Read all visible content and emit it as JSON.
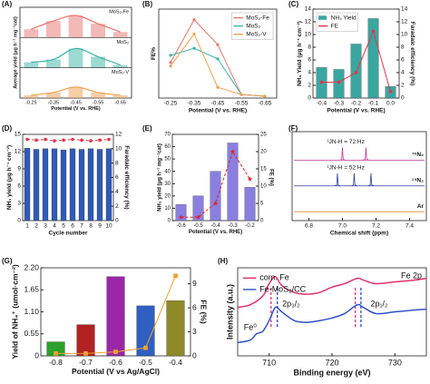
{
  "chart_data": [
    {
      "type": "bar-multi",
      "panel_label": "(A)",
      "xlabel": "Potential (V vs. RHE)",
      "ylabel": "Average yield (μg h⁻¹ mg⁻¹cat)",
      "categories": [
        "-0.25",
        "-0.35",
        "-0.45",
        "-0.55",
        "-0.65"
      ],
      "ylim": [
        0,
        10
      ],
      "series": [
        {
          "name": "MoS₂-Fe",
          "color": "#e8746e",
          "values": [
            3,
            6,
            8,
            5,
            2
          ]
        },
        {
          "name": "MoS₂",
          "color": "#3bb3a8",
          "values": [
            2,
            3,
            7,
            4,
            1
          ]
        },
        {
          "name": "MoS₂-V",
          "color": "#f0a050",
          "values": [
            1,
            2,
            4,
            2,
            1
          ]
        }
      ]
    },
    {
      "type": "line",
      "panel_label": "(B)",
      "xlabel": "Potential (V vs. RHE)",
      "ylabel": "FE%",
      "categories": [
        "-0.25",
        "-0.35",
        "-0.45",
        "-0.55",
        "-0.65"
      ],
      "ylim": [
        0,
        25
      ],
      "legend": "upper right",
      "series": [
        {
          "name": "MoS₂-Fe",
          "color": "#e8746e",
          "values": [
            10,
            22,
            15,
            1,
            0.5
          ]
        },
        {
          "name": "MoS₂",
          "color": "#3bb3a8",
          "values": [
            12,
            14,
            11,
            1,
            0.5
          ]
        },
        {
          "name": "MoS₂-V",
          "color": "#f0a050",
          "values": [
            9,
            18,
            3,
            1,
            0.5
          ]
        }
      ]
    },
    {
      "type": "bar-line",
      "panel_label": "(C)",
      "xlabel": "Potential (V vs. RHE)",
      "ylabel": "NH₃ Yield (μg h⁻¹ cm⁻²)",
      "y2label": "Faradaic efficiency (%)",
      "categories": [
        "-0.4",
        "-0.3",
        "-0.2",
        "-0.1",
        "0.0"
      ],
      "ylim": [
        0,
        14
      ],
      "yticks": [
        0,
        2,
        4,
        6,
        8,
        10,
        12,
        14
      ],
      "y2lim": [
        0,
        14
      ],
      "y2ticks": [
        0,
        2,
        4,
        6,
        8,
        10,
        12,
        14
      ],
      "legend": "upper left",
      "series": [
        {
          "name": "NH₃ Yield",
          "color": "#3aa6a0",
          "values": [
            4.8,
            4.5,
            8.5,
            12.5,
            1.8
          ]
        },
        {
          "name": "FE",
          "color": "#e0364a",
          "axis": "y2",
          "marker": "circle",
          "values": [
            2.5,
            2.5,
            4.0,
            10.5,
            1.0
          ]
        }
      ]
    },
    {
      "type": "bar-line",
      "panel_label": "(D)",
      "xlabel": "Cycle number",
      "ylabel": "NH₃ yield (μg h⁻¹ cm⁻²)",
      "y2label": "Faradaic efficiency (%)",
      "categories": [
        "1",
        "2",
        "3",
        "4",
        "5",
        "6",
        "7",
        "8",
        "9",
        "10"
      ],
      "ylim": [
        0,
        15
      ],
      "yticks": [
        0,
        3,
        6,
        9,
        12,
        15
      ],
      "y2lim": [
        0,
        12
      ],
      "y2ticks": [
        0,
        2,
        4,
        6,
        8,
        10,
        12
      ],
      "series": [
        {
          "color": "#2f5bb7",
          "values": [
            12.6,
            12.4,
            12.5,
            12.5,
            12.3,
            12.5,
            12.4,
            12.5,
            12.4,
            12.5
          ]
        },
        {
          "color": "#e0364a",
          "axis": "y2",
          "marker": "circle",
          "line_style": "dashed",
          "values": [
            11.3,
            11.2,
            11.3,
            11.1,
            11.2,
            11.3,
            11.2,
            11.1,
            11.2,
            11.3
          ]
        }
      ]
    },
    {
      "type": "bar-line",
      "panel_label": "(E)",
      "xlabel": "Potential (V vs. RHE)",
      "ylabel": "NH₃ yield (μg h⁻¹ mg⁻¹cat)",
      "y2label": "FE (%)",
      "categories": [
        "-0.6",
        "-0.5",
        "-0.4",
        "-0.3",
        "-0.2"
      ],
      "ylim": [
        0,
        70
      ],
      "yticks": [
        0,
        10,
        20,
        30,
        40,
        50,
        60,
        70
      ],
      "y2lim": [
        0,
        25
      ],
      "y2ticks": [
        0,
        5,
        10,
        15,
        20,
        25
      ],
      "series": [
        {
          "color": "#8a7fe0",
          "values": [
            13,
            20,
            40,
            63,
            27
          ]
        },
        {
          "color": "#e02020",
          "axis": "y2",
          "marker": "star",
          "line_style": "dashed",
          "values": [
            1,
            1,
            5,
            20,
            12
          ]
        }
      ]
    },
    {
      "type": "spectrum",
      "panel_label": "(F)",
      "xlabel": "Chemical shift (ppm)",
      "xlim": [
        6.7,
        7.5
      ],
      "xticks": [
        6.8,
        {
          "value": 7,
          "label": "7.0"
        },
        7.2,
        7.4
      ],
      "annotations": [
        "¹JN-H = 72 Hz",
        "¹JN-H = 52 Hz"
      ],
      "series": [
        {
          "name": "¹⁵N₂",
          "color": "#c0399a",
          "peaks": [
            7.0,
            7.14
          ]
        },
        {
          "name": "¹⁴N₂",
          "color": "#2f3fa0",
          "peaks": [
            6.97,
            7.07,
            7.17
          ]
        },
        {
          "name": "Ar",
          "color": "#e08a2a",
          "peaks": []
        }
      ]
    },
    {
      "type": "bar-line",
      "panel_label": "(G)",
      "xlabel": "Potential (V vs Ag/AgCl)",
      "ylabel": "Yield of NH₄⁺ (umol·cm⁻²)",
      "y2label": "FE (%)",
      "categories": [
        "-0.8",
        "-0.7",
        "-0.6",
        "-0.5",
        "-0.4"
      ],
      "ylim": [
        0,
        2.2
      ],
      "yticks": [
        0,
        0.55,
        {
          "value": 1.1,
          "label": "1.10"
        },
        1.65,
        {
          "value": 2.2,
          "label": "2.20"
        }
      ],
      "y2lim": [
        0,
        11
      ],
      "y2ticks": [
        0,
        3,
        6,
        9
      ],
      "series": [
        {
          "colors": [
            "#2ca02c",
            "#b22222",
            "#9b27a8",
            "#2f5fc0",
            "#8e8a2a"
          ],
          "values": [
            0.35,
            0.78,
            1.98,
            1.25,
            1.38
          ]
        },
        {
          "color": "#f0a030",
          "axis": "y2",
          "marker": "square",
          "values": [
            0.3,
            0.3,
            0.5,
            1.0,
            10.0
          ]
        }
      ]
    },
    {
      "type": "xps",
      "panel_label": "(H)",
      "xlabel": "Binding energy (eV)",
      "ylabel": "Intensity (a.u.)",
      "xlim": [
        705,
        735
      ],
      "xticks": [
        710,
        720,
        730
      ],
      "ylim": [
        0,
        1
      ],
      "legend": "upper left",
      "annotations": [
        "Fe 2p",
        "2p₃/₂",
        "2p₁/₂",
        "Fe⁰"
      ],
      "reference_lines": [
        {
          "x": 710.3,
          "color": "#e0357a"
        },
        {
          "x": 711.3,
          "color": "#3344cc"
        },
        {
          "x": 723.7,
          "color": "#e0357a"
        },
        {
          "x": 724.6,
          "color": "#3344cc"
        }
      ],
      "series": [
        {
          "name": "com. Fe",
          "color": "#e0306a",
          "x": [
            705,
            707,
            709,
            710,
            711,
            712,
            714,
            716,
            718,
            720,
            722,
            724,
            725,
            727,
            730,
            733,
            735
          ],
          "values": [
            0.55,
            0.58,
            0.68,
            0.82,
            0.9,
            0.8,
            0.72,
            0.7,
            0.72,
            0.78,
            0.82,
            0.88,
            0.86,
            0.82,
            0.84,
            0.86,
            0.88
          ]
        },
        {
          "name": "Fe-MoS₂/CC",
          "color": "#3050c8",
          "x": [
            705,
            707,
            708,
            709,
            710,
            711,
            712,
            714,
            716,
            718,
            720,
            722,
            724,
            725,
            727,
            730,
            733,
            735
          ],
          "values": [
            0.15,
            0.18,
            0.25,
            0.28,
            0.4,
            0.55,
            0.5,
            0.4,
            0.38,
            0.4,
            0.43,
            0.48,
            0.58,
            0.55,
            0.48,
            0.5,
            0.52,
            0.53
          ]
        }
      ]
    }
  ]
}
